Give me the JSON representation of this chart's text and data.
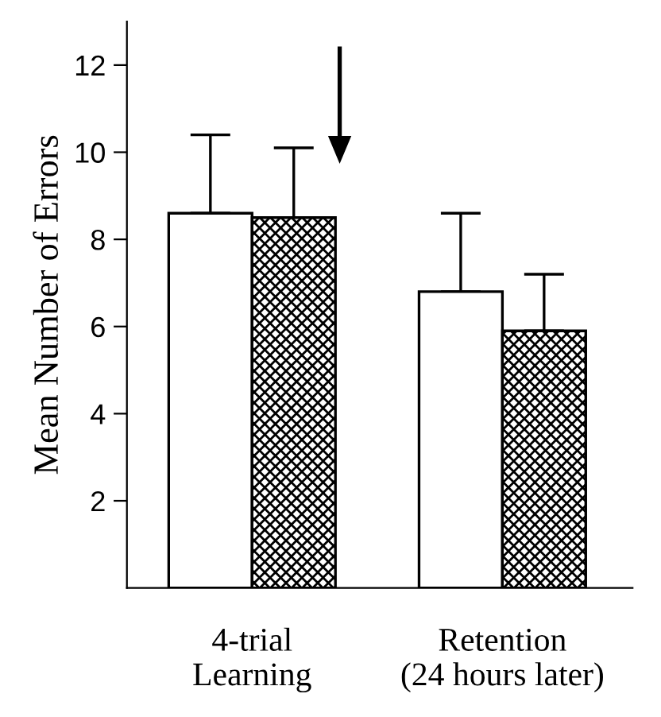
{
  "chart_data": {
    "type": "bar",
    "ylabel": "Mean Number of Errors",
    "categories": [
      "4-trial\nLearning",
      "Retention\n(24 hours later)"
    ],
    "series": [
      {
        "color": "#ffffff",
        "values": [
          8.6,
          6.8
        ],
        "errors": [
          [
            8.6,
            10.4
          ],
          [
            6.8,
            8.6
          ]
        ]
      },
      {
        "color": "#000000",
        "values": [
          8.5,
          5.9
        ],
        "errors": [
          [
            8.5,
            10.1
          ],
          [
            5.9,
            7.2
          ]
        ]
      }
    ],
    "ylim": [
      0,
      13
    ],
    "yticks": [
      2,
      4,
      6,
      8,
      10,
      12
    ],
    "grid": false,
    "legend": false
  }
}
